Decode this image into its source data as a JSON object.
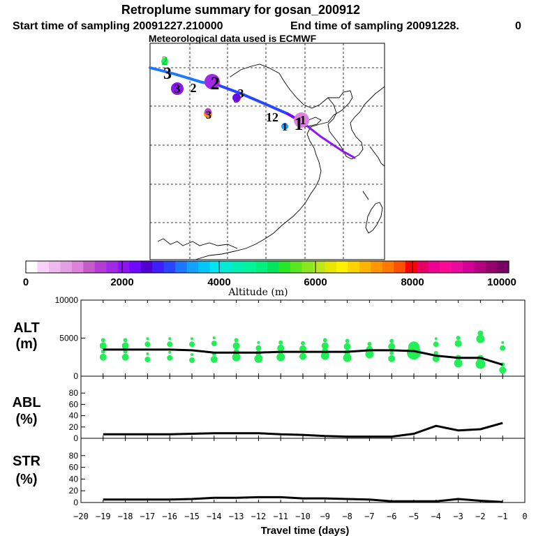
{
  "header": {
    "title": "Retroplume summary for gosan_200912",
    "start_label": "Start time of sampling 20091227.210000",
    "end_label": "End time of sampling 20091228.",
    "end_value": "0",
    "met_label": "Meteorological data used is ECMWF"
  },
  "colorbar": {
    "colors": [
      "#ffffff",
      "#f6d2f6",
      "#eebaee",
      "#e5a0e5",
      "#dc82dc",
      "#c65ac6",
      "#b43cd2",
      "#a028e6",
      "#8c14f5",
      "#6e0aff",
      "#5000d2",
      "#3c1eff",
      "#2846ff",
      "#1e78ff",
      "#14a0ff",
      "#00c8ff",
      "#00e6f0",
      "#00ebd2",
      "#00f0b4",
      "#00f59b",
      "#00f07d",
      "#00e65a",
      "#28e628",
      "#5ae61e",
      "#8ce61e",
      "#bee61e",
      "#e6e600",
      "#fff000",
      "#ffd200",
      "#ffb400",
      "#ff9600",
      "#ff7800",
      "#ff5000",
      "#ff0000",
      "#e60064",
      "#f00096",
      "#ff0a96",
      "#eb0aa0",
      "#d20096",
      "#b40082",
      "#96006e",
      "#780064"
    ],
    "tick_labels": [
      "0",
      "2000",
      "4000",
      "6000",
      "8000",
      "10000"
    ],
    "label": "Altitude (m)"
  },
  "map_labels": [
    {
      "text": "2",
      "color": "#00cc33"
    },
    {
      "text": "3",
      "color": "#000000"
    },
    {
      "text": "3",
      "color": "#000000"
    },
    {
      "text": "2",
      "color": "#000000"
    },
    {
      "text": "2",
      "color": "#000000"
    },
    {
      "text": "3",
      "color": "#000000"
    },
    {
      "text": "3",
      "color": "#000000"
    },
    {
      "text": "3",
      "color": "#6a0dad"
    },
    {
      "text": "12",
      "color": "#000000"
    },
    {
      "text": "1",
      "color": "#000000"
    },
    {
      "text": "1",
      "color": "#000000"
    },
    {
      "text": "1",
      "color": "#000000"
    }
  ],
  "chart_data": [
    {
      "type": "line",
      "name": "alt-panel",
      "panel_label": "ALT",
      "unit_label": "(m)",
      "ylim": [
        0,
        10000
      ],
      "y_ticks": [
        "0",
        "5000",
        "10000"
      ],
      "x": [
        -19,
        -18,
        -17,
        -16,
        -15,
        -14,
        -13,
        -12,
        -11,
        -10,
        -9,
        -8,
        -7,
        -6,
        -5,
        -4,
        -3,
        -2,
        -1
      ],
      "series": [
        {
          "name": "mean altitude",
          "color": "#000000",
          "values": [
            3500,
            3500,
            3500,
            3500,
            3400,
            3100,
            3100,
            3100,
            3200,
            3200,
            3200,
            3200,
            3400,
            3400,
            3300,
            2700,
            2400,
            2400,
            1500
          ]
        },
        {
          "name": "upper cluster altitude",
          "color": "#22ee55",
          "values": [
            4000,
            4000,
            4200,
            4200,
            4200,
            4300,
            4000,
            3700,
            3700,
            3600,
            4000,
            3900,
            3500,
            3900,
            3000,
            4200,
            4300,
            4900,
            3700
          ]
        },
        {
          "name": "lower cluster altitude",
          "color": "#22ee55",
          "values": [
            2500,
            2500,
            2200,
            2400,
            2100,
            2200,
            2500,
            2300,
            2500,
            2600,
            2700,
            2400,
            2900,
            2300,
            3100,
            2300,
            1700,
            1600,
            800
          ]
        }
      ]
    },
    {
      "type": "line",
      "name": "abl-panel",
      "panel_label": "ABL",
      "unit_label": "(%)",
      "ylim": [
        0,
        100
      ],
      "y_ticks": [
        "0",
        "20",
        "40",
        "60",
        "80"
      ],
      "x": [
        -19,
        -18,
        -17,
        -16,
        -15,
        -14,
        -13,
        -12,
        -11,
        -10,
        -9,
        -8,
        -7,
        -6,
        -5,
        -4,
        -3,
        -2,
        -1
      ],
      "series": [
        {
          "name": "ABL fraction",
          "color": "#000000",
          "values": [
            7,
            7,
            7,
            7,
            8,
            9,
            9,
            9,
            7,
            6,
            4,
            3,
            3,
            3,
            8,
            22,
            14,
            16,
            27
          ]
        }
      ]
    },
    {
      "type": "line",
      "name": "str-panel",
      "panel_label": "STR",
      "unit_label": "(%)",
      "ylim": [
        0,
        100
      ],
      "y_ticks": [
        "0",
        "20",
        "40",
        "60",
        "80"
      ],
      "x": [
        -19,
        -18,
        -17,
        -16,
        -15,
        -14,
        -13,
        -12,
        -11,
        -10,
        -9,
        -8,
        -7,
        -6,
        -5,
        -4,
        -3,
        -2,
        -1
      ],
      "series": [
        {
          "name": "STR fraction",
          "color": "#000000",
          "values": [
            5,
            5,
            5,
            5,
            6,
            8,
            8,
            9,
            9,
            7,
            7,
            6,
            5,
            2,
            2,
            2,
            6,
            3,
            1
          ]
        }
      ]
    }
  ],
  "x_axis": {
    "xlim": [
      -20,
      0
    ],
    "tick_labels": [
      "−20",
      "−19",
      "−18",
      "−17",
      "−16",
      "−15",
      "−14",
      "−13",
      "−12",
      "−11",
      "−10",
      "−9",
      "−8",
      "−7",
      "−6",
      "−5",
      "−4",
      "−3",
      "−2",
      "−1",
      "0"
    ],
    "label": "Travel time (days)"
  }
}
